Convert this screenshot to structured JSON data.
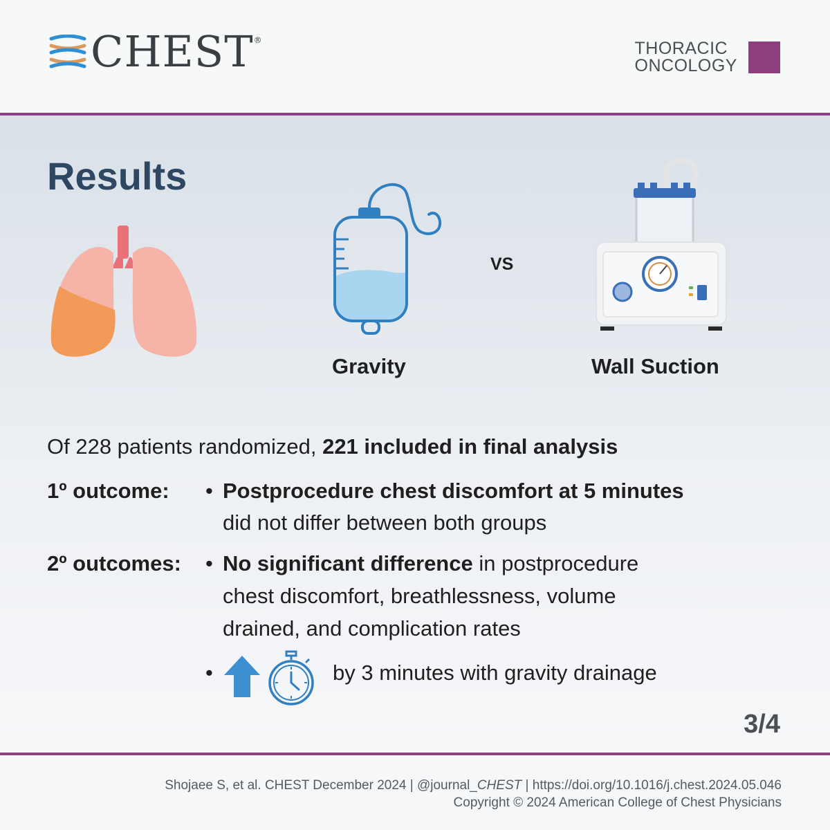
{
  "header": {
    "brand": "CHEST",
    "brand_mark": "®",
    "section_line1": "THORACIC",
    "section_line2": "ONCOLOGY",
    "section_color": "#8c3f7f"
  },
  "main": {
    "title": "Results",
    "icons": [
      "lungs-icon",
      "iv-bag-icon",
      "suction-machine-icon",
      "up-arrow-icon",
      "stopwatch-icon"
    ],
    "compare_left": "Gravity",
    "compare_vs": "VS",
    "compare_right": "Wall Suction",
    "summary_plain": "Of 228 patients randomized, ",
    "summary_bold": "221 included in final analysis",
    "primary_label": "1º outcome:",
    "primary_bold": "Postprocedure chest discomfort at 5 minutes",
    "primary_rest": "did not differ between both groups",
    "secondary_label": "2º outcomes:",
    "secondary_bold": "No significant difference",
    "secondary_line1_rest": " in postprocedure",
    "secondary_line2": "chest discomfort, breathlessness, volume",
    "secondary_line3": "drained, and complication rates",
    "time_text": "by 3 minutes with gravity drainage",
    "bullet": "•",
    "page": "3/4"
  },
  "footer": {
    "cite_a": "Shojaee S, et al. CHEST December 2024  |  @journal_",
    "cite_b": "CHEST",
    "cite_c": "  |  https://doi.org/10.1016/j.chest.2024.05.046",
    "copyright": "Copyright © 2024 American College of Chest Physicians"
  },
  "colors": {
    "rule": "#8a3f7e",
    "title": "#2e4863",
    "icon_blue": "#2f7fc1"
  }
}
